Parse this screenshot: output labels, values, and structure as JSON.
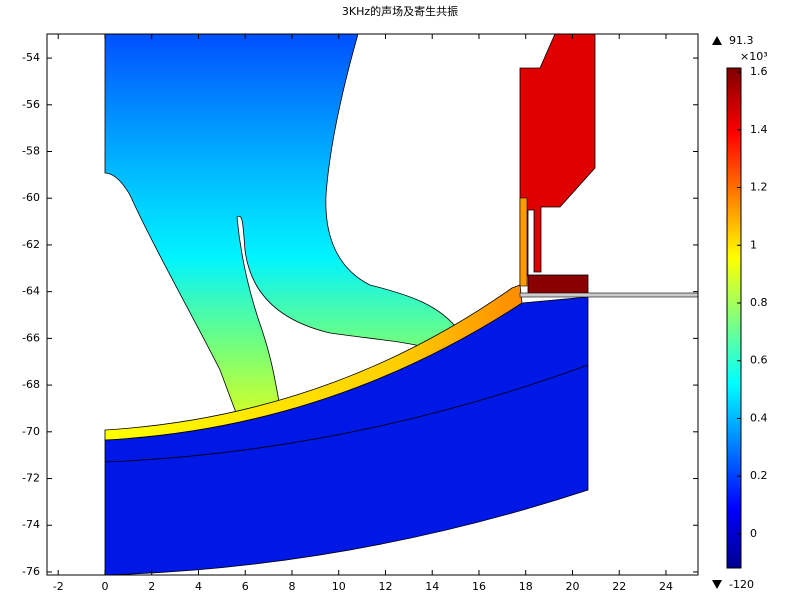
{
  "chart_data": {
    "type": "field",
    "title": "3KHz的声场及寄生共振",
    "xlim": [
      -2.48,
      25.37
    ],
    "xticks": [
      -2,
      0,
      2,
      4,
      6,
      8,
      10,
      12,
      14,
      16,
      18,
      20,
      22,
      24
    ],
    "ylim": [
      -76.13,
      -52.97
    ],
    "yticks": [
      -54,
      -56,
      -58,
      -60,
      -62,
      -64,
      -66,
      -68,
      -70,
      -72,
      -74,
      -76
    ],
    "colorbar": {
      "lim": [
        -0.118,
        1.614
      ],
      "ticks": [
        0,
        0.2,
        0.4,
        0.6,
        0.8,
        1,
        1.2,
        1.4,
        1.6
      ],
      "multiplier": "×10³",
      "max": 91.3,
      "min": -120
    }
  }
}
